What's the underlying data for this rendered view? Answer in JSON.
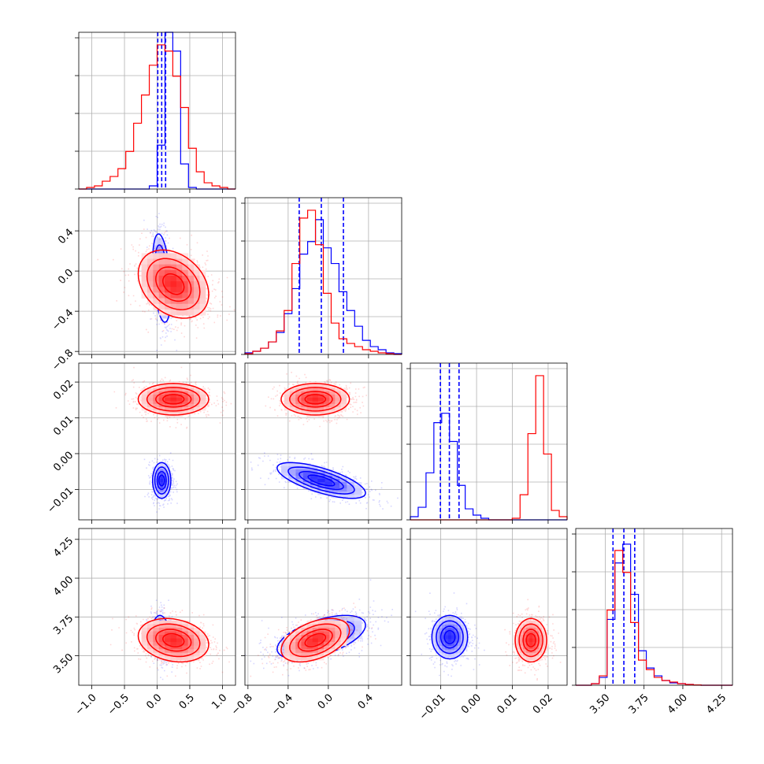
{
  "colors": {
    "series_a": "#0000ff",
    "series_b": "#ff0000",
    "grid": "#b0b0b0",
    "frame": "#000000"
  },
  "chart_data": {
    "type": "corner",
    "title": "",
    "grid": true,
    "legend": "none",
    "parameters": [
      {
        "range": [
          -1.2,
          1.2
        ],
        "ticks": [
          -1.0,
          -0.5,
          0.0,
          0.5,
          1.0
        ],
        "tick_labels": [
          "−1.0",
          "−0.5",
          "0.0",
          "0.5",
          "1.0"
        ]
      },
      {
        "range": [
          -0.83,
          0.73
        ],
        "ticks": [
          -0.8,
          -0.4,
          0.0,
          0.4
        ],
        "tick_labels": [
          "−0.8",
          "−0.4",
          "0.0",
          "0.4"
        ]
      },
      {
        "range": [
          -0.0185,
          0.0253
        ],
        "ticks": [
          -0.01,
          0.0,
          0.01,
          0.02
        ],
        "tick_labels": [
          "−0.01",
          "0.00",
          "0.01",
          "0.02"
        ]
      },
      {
        "range": [
          3.31,
          4.32
        ],
        "ticks": [
          3.5,
          3.75,
          4.0,
          4.25
        ],
        "tick_labels": [
          "3.50",
          "3.75",
          "4.00",
          "4.25"
        ]
      }
    ],
    "series": [
      {
        "color": "#0000ff",
        "means": [
          0.07,
          -0.07,
          -0.0075,
          3.62
        ],
        "sds": [
          0.07,
          0.22,
          0.0025,
          0.07
        ],
        "rho": [
          [
            0,
            1,
            -0.35
          ],
          [
            0,
            3,
            -0.2
          ],
          [
            1,
            2,
            -0.7
          ],
          [
            1,
            3,
            0.55
          ],
          [
            2,
            3,
            0.0
          ]
        ],
        "quantiles": [
          [
            0.01,
            0.07,
            0.13
          ],
          [
            -0.29,
            -0.07,
            0.15
          ],
          [
            -0.0101,
            -0.0076,
            -0.0049
          ],
          [
            3.55,
            3.62,
            3.69
          ]
        ],
        "hist1d": [
          {
            "edges": [
              -1.2,
              1.2
            ],
            "counts": [
              0,
              0,
              0,
              0,
              0,
              0,
              0,
              0,
              0,
              0.02,
              0.28,
              1.0,
              0.88,
              0.16,
              0.01,
              0,
              0,
              0,
              0,
              0
            ]
          },
          {
            "edges": [
              -0.83,
              0.73
            ],
            "counts": [
              0.01,
              0.02,
              0.04,
              0.08,
              0.14,
              0.26,
              0.42,
              0.64,
              0.72,
              0.86,
              0.68,
              0.58,
              0.4,
              0.28,
              0.18,
              0.09,
              0.05,
              0.03,
              0.01,
              0.005
            ]
          },
          {
            "edges": [
              -0.0185,
              0.0253
            ],
            "counts": [
              0.02,
              0.08,
              0.3,
              0.62,
              0.68,
              0.5,
              0.22,
              0.07,
              0.03,
              0.01,
              0,
              0,
              0,
              0,
              0,
              0,
              0,
              0,
              0,
              0
            ]
          },
          {
            "edges": [
              3.31,
              4.32
            ],
            "counts": [
              0,
              0,
              0.01,
              0.05,
              0.42,
              0.78,
              0.9,
              0.58,
              0.22,
              0.11,
              0.06,
              0.03,
              0.015,
              0.01,
              0.005,
              0.002,
              0,
              0,
              0,
              0
            ]
          }
        ]
      },
      {
        "color": "#ff0000",
        "means": [
          0.25,
          -0.13,
          0.0152,
          3.6
        ],
        "sds": [
          0.27,
          0.17,
          0.0022,
          0.07
        ],
        "rho": [
          [
            0,
            1,
            -0.3
          ],
          [
            0,
            3,
            -0.2
          ],
          [
            1,
            2,
            0.0
          ],
          [
            1,
            3,
            0.45
          ],
          [
            2,
            3,
            0.0
          ]
        ],
        "quantiles": [],
        "hist1d": [
          {
            "edges": [
              -1.2,
              1.2
            ],
            "counts": [
              0,
              0.01,
              0.02,
              0.05,
              0.08,
              0.13,
              0.24,
              0.42,
              0.6,
              0.79,
              0.92,
              0.88,
              0.72,
              0.52,
              0.26,
              0.11,
              0.04,
              0.02,
              0.01,
              0
            ]
          },
          {
            "edges": [
              -0.83,
              0.73
            ],
            "counts": [
              0.005,
              0.02,
              0.04,
              0.08,
              0.15,
              0.28,
              0.58,
              0.87,
              0.92,
              0.7,
              0.39,
              0.2,
              0.1,
              0.07,
              0.05,
              0.03,
              0.02,
              0.01,
              0.005,
              0
            ]
          },
          {
            "edges": [
              -0.0185,
              0.0253
            ],
            "counts": [
              0,
              0,
              0,
              0,
              0,
              0,
              0,
              0,
              0,
              0,
              0,
              0,
              0,
              0.01,
              0.16,
              0.55,
              0.92,
              0.42,
              0.06,
              0.02
            ]
          },
          {
            "edges": [
              3.31,
              4.32
            ],
            "counts": [
              0,
              0,
              0.01,
              0.06,
              0.48,
              0.86,
              0.72,
              0.4,
              0.16,
              0.1,
              0.05,
              0.03,
              0.02,
              0.01,
              0.005,
              0.002,
              0,
              0,
              0,
              0
            ]
          }
        ]
      }
    ]
  }
}
